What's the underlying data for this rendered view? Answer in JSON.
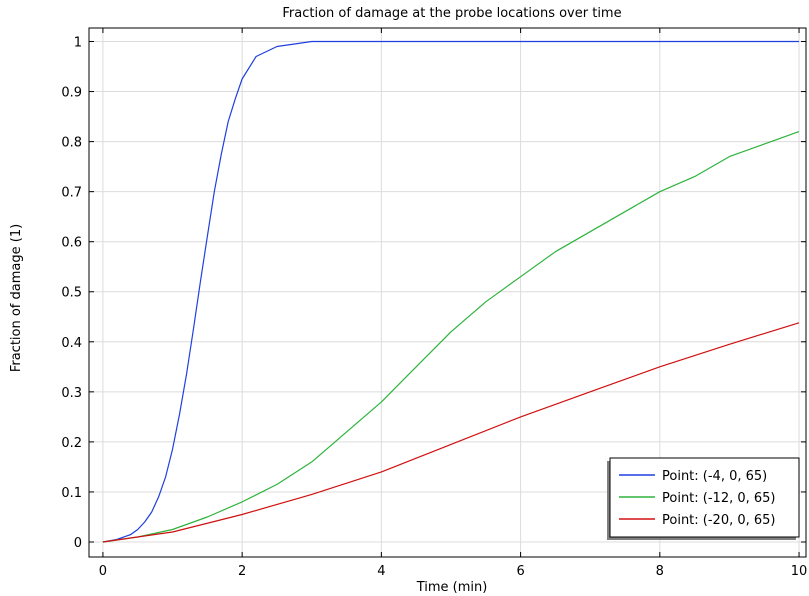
{
  "chart_data": {
    "type": "line",
    "title": "Fraction of damage at the probe locations over time",
    "xlabel": "Time (min)",
    "ylabel": "Fraction of damage (1)",
    "xlim": [
      -0.2,
      10.1
    ],
    "ylim": [
      -0.03,
      1.027
    ],
    "x_ticks": [
      "0",
      "2",
      "4",
      "6",
      "8",
      "10"
    ],
    "y_ticks": [
      "0",
      "0.1",
      "0.2",
      "0.3",
      "0.4",
      "0.5",
      "0.6",
      "0.7",
      "0.8",
      "0.9",
      "1"
    ],
    "grid": true,
    "legend_position": "bottom-right",
    "series": [
      {
        "name": "Point: (-4, 0, 65)",
        "color": "#1f3fdf",
        "points": [
          [
            0,
            0
          ],
          [
            0.2,
            0.005
          ],
          [
            0.4,
            0.015
          ],
          [
            0.5,
            0.025
          ],
          [
            0.6,
            0.04
          ],
          [
            0.7,
            0.06
          ],
          [
            0.8,
            0.09
          ],
          [
            0.9,
            0.13
          ],
          [
            1.0,
            0.185
          ],
          [
            1.1,
            0.255
          ],
          [
            1.2,
            0.335
          ],
          [
            1.3,
            0.425
          ],
          [
            1.4,
            0.52
          ],
          [
            1.5,
            0.61
          ],
          [
            1.6,
            0.7
          ],
          [
            1.7,
            0.775
          ],
          [
            1.8,
            0.84
          ],
          [
            1.9,
            0.885
          ],
          [
            2.0,
            0.925
          ],
          [
            2.2,
            0.97
          ],
          [
            2.5,
            0.99
          ],
          [
            3.0,
            1.0
          ],
          [
            4,
            1.0
          ],
          [
            6,
            1.0
          ],
          [
            8,
            1.0
          ],
          [
            10,
            1.0
          ]
        ]
      },
      {
        "name": "Point: (-12, 0, 65)",
        "color": "#2db33c",
        "points": [
          [
            0,
            0
          ],
          [
            0.5,
            0.01
          ],
          [
            1.0,
            0.025
          ],
          [
            1.5,
            0.05
          ],
          [
            2.0,
            0.08
          ],
          [
            2.5,
            0.115
          ],
          [
            3.0,
            0.16
          ],
          [
            3.5,
            0.22
          ],
          [
            4.0,
            0.28
          ],
          [
            4.5,
            0.35
          ],
          [
            5.0,
            0.42
          ],
          [
            5.5,
            0.48
          ],
          [
            6.0,
            0.53
          ],
          [
            6.5,
            0.58
          ],
          [
            7.0,
            0.62
          ],
          [
            7.5,
            0.66
          ],
          [
            8.0,
            0.7
          ],
          [
            8.5,
            0.73
          ],
          [
            9.0,
            0.77
          ],
          [
            9.5,
            0.795
          ],
          [
            10.0,
            0.82
          ]
        ]
      },
      {
        "name": "Point: (-20, 0, 65)",
        "color": "#d01010",
        "points": [
          [
            0,
            0
          ],
          [
            1.0,
            0.02
          ],
          [
            2.0,
            0.055
          ],
          [
            3.0,
            0.095
          ],
          [
            4.0,
            0.14
          ],
          [
            5.0,
            0.195
          ],
          [
            6.0,
            0.25
          ],
          [
            7.0,
            0.3
          ],
          [
            8.0,
            0.35
          ],
          [
            9.0,
            0.395
          ],
          [
            10.0,
            0.438
          ]
        ]
      }
    ]
  }
}
